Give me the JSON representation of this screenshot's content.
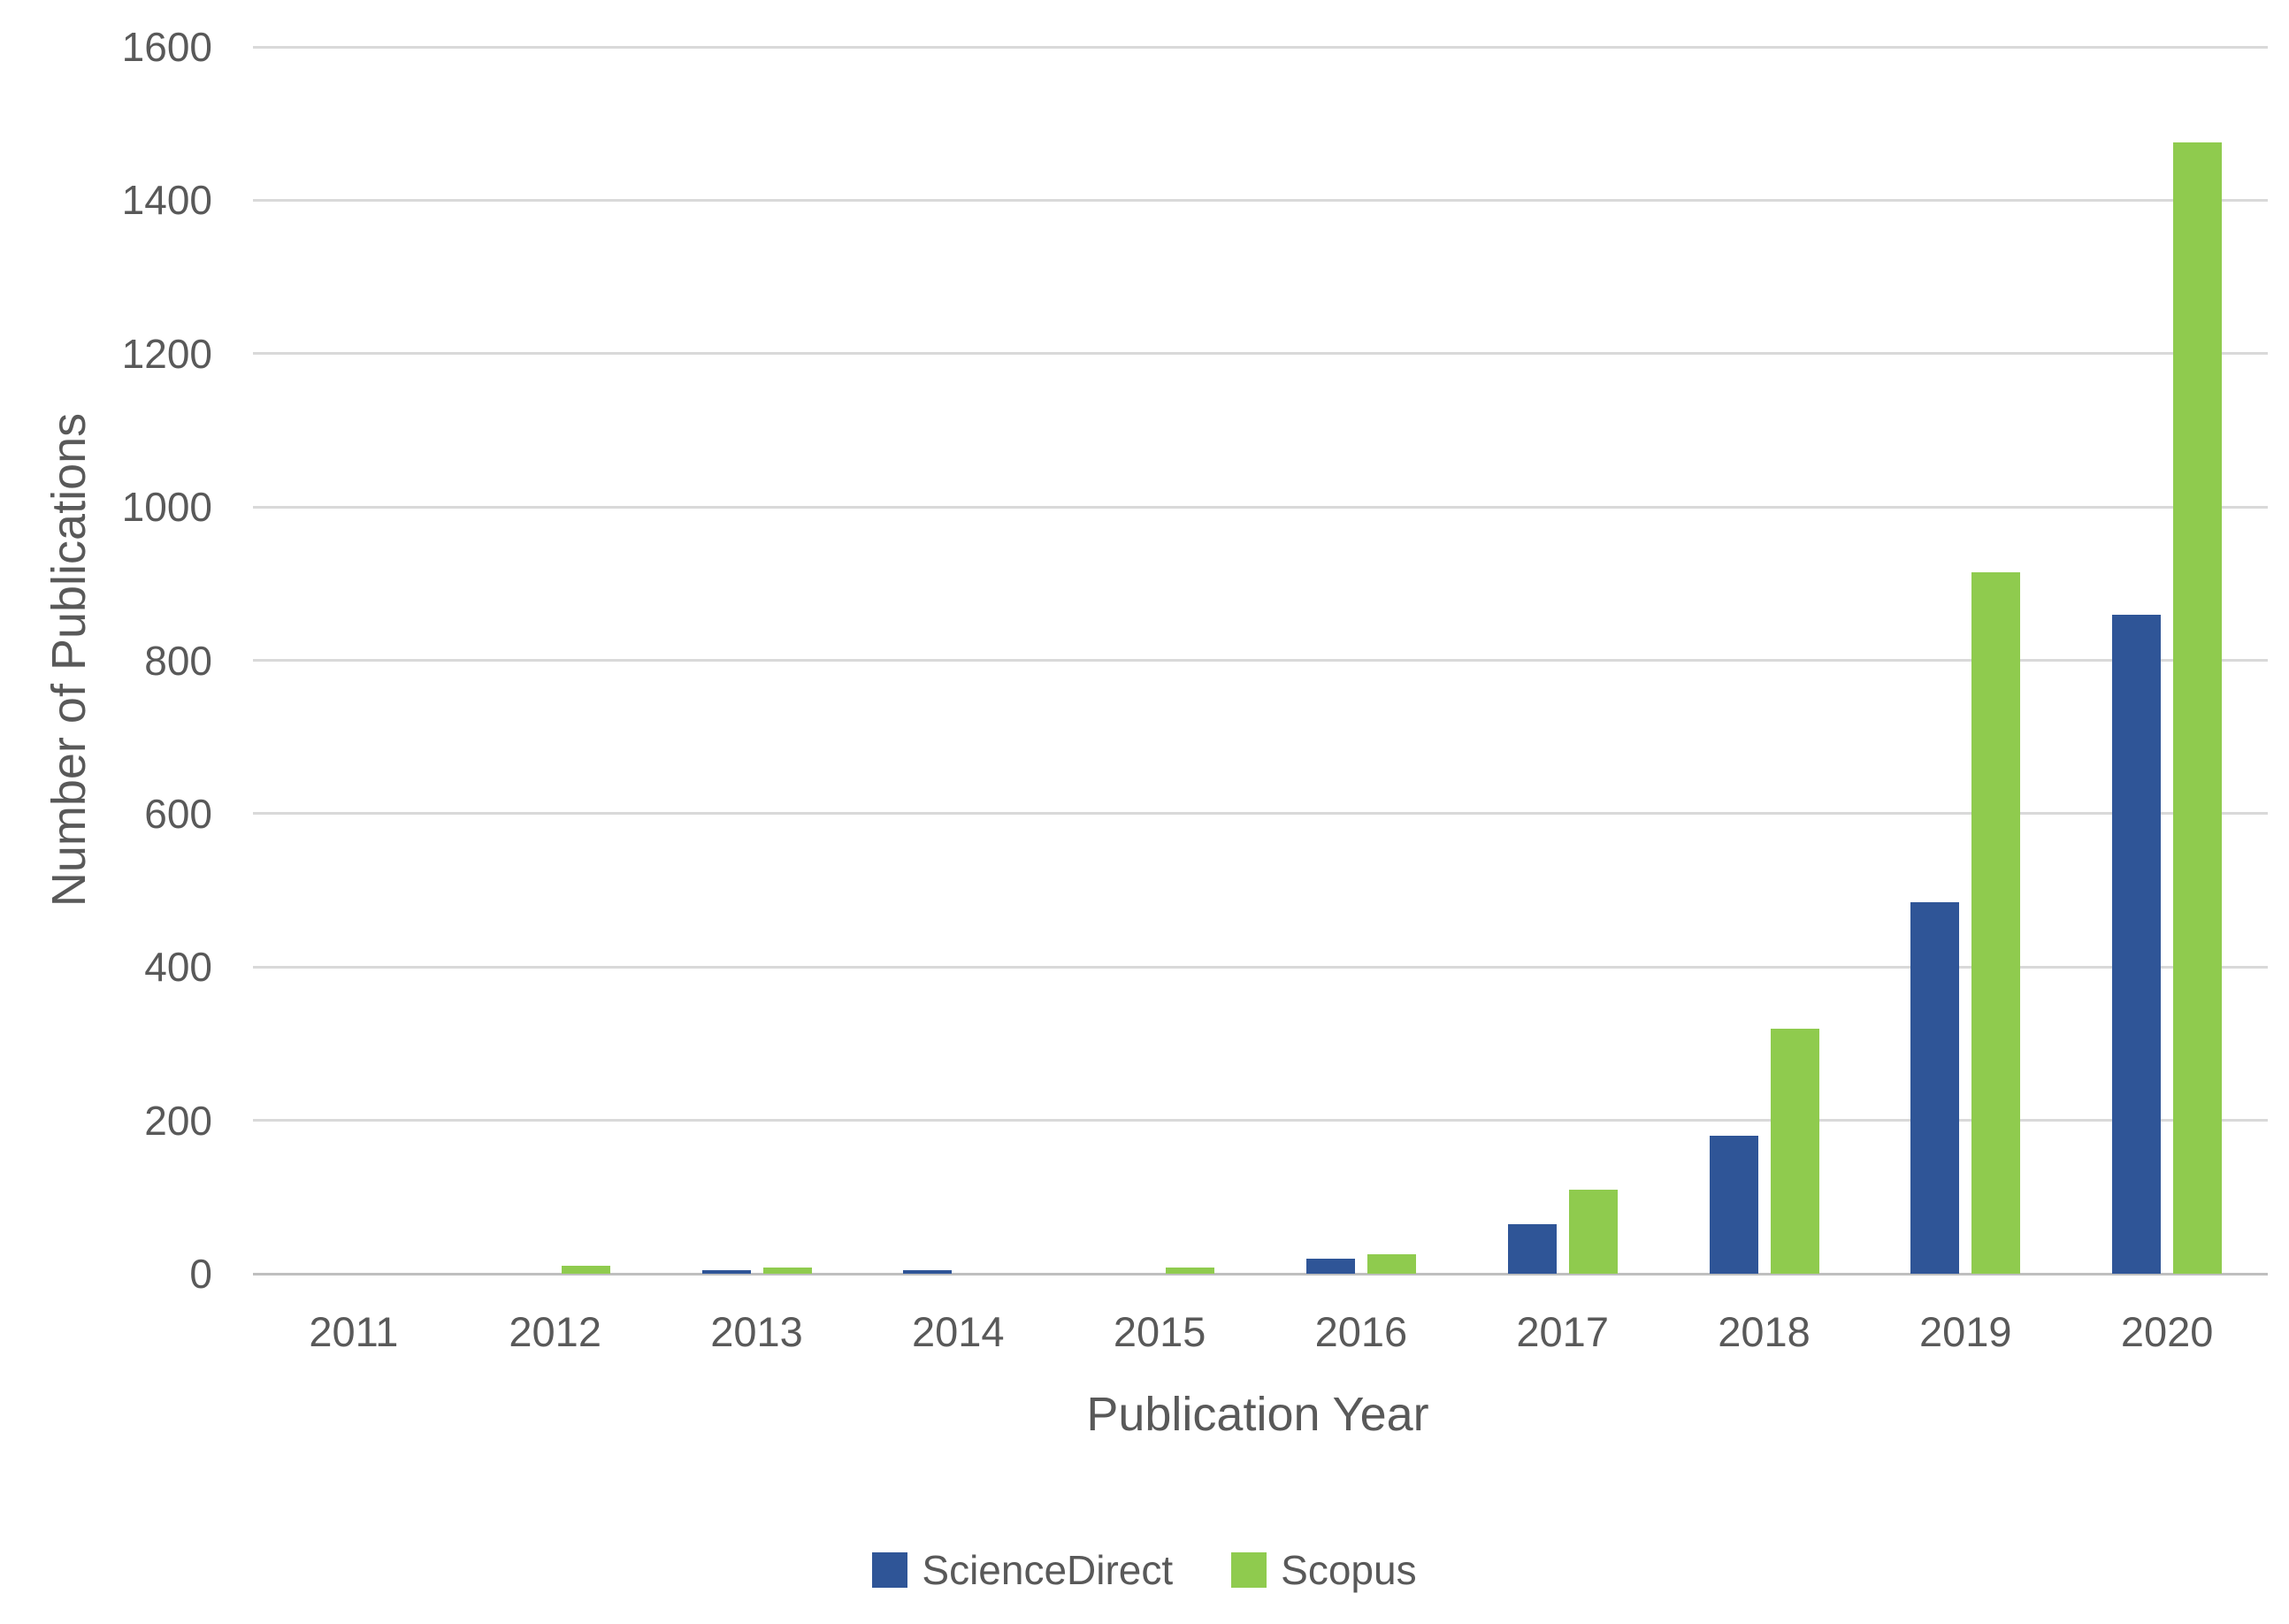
{
  "chart_data": {
    "type": "bar",
    "title": "",
    "categories": [
      "2011",
      "2012",
      "2013",
      "2014",
      "2015",
      "2016",
      "2017",
      "2018",
      "2019",
      "2020"
    ],
    "series": [
      {
        "name": "ScienceDirect",
        "color": "#2F5597",
        "values": [
          0,
          0,
          5,
          5,
          0,
          20,
          65,
          180,
          485,
          860
        ]
      },
      {
        "name": "Scopus",
        "color": "#8FCB4E",
        "values": [
          0,
          10,
          8,
          0,
          8,
          25,
          110,
          320,
          915,
          1475
        ]
      }
    ],
    "xlabel": "Publication Year",
    "ylabel": "Number of Publications",
    "ylim": [
      0,
      1600
    ],
    "yticks": [
      0,
      200,
      400,
      600,
      800,
      1000,
      1200,
      1400,
      1600
    ],
    "grid": "horizontal",
    "legend_position": "bottom"
  },
  "styles": {
    "text_color": "#595959",
    "gridline_color": "#D9D9D9",
    "axisline_color": "#BFBFBF",
    "background": "#FFFFFF"
  }
}
